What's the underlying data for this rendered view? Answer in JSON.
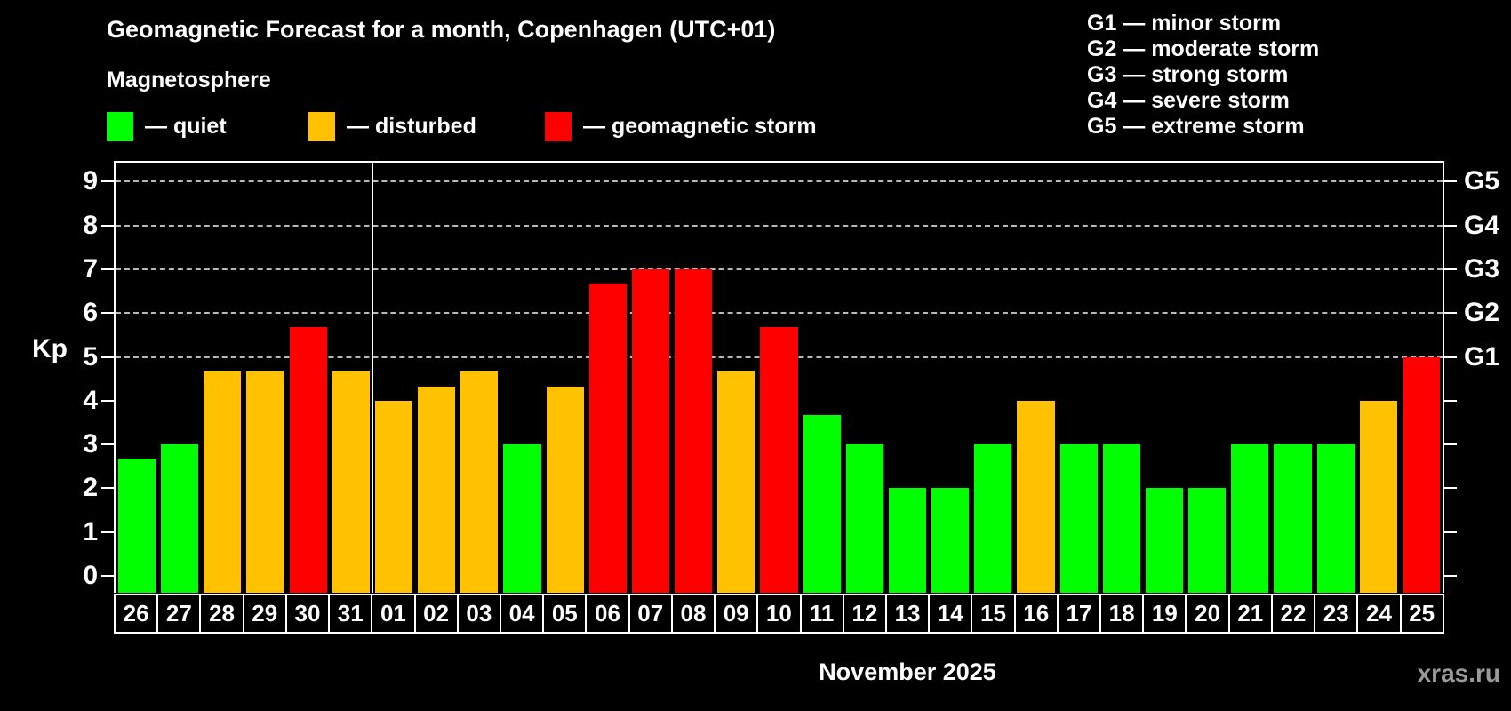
{
  "title": "Geomagnetic Forecast for a month, Copenhagen (UTC+01)",
  "subtitle": "Magnetosphere",
  "legend": {
    "items": [
      {
        "key": "quiet",
        "label": "— quiet"
      },
      {
        "key": "disturbed",
        "label": "— disturbed"
      },
      {
        "key": "storm",
        "label": "— geomagnetic storm"
      }
    ]
  },
  "g_legend": [
    "G1 — minor storm",
    "G2 — moderate storm",
    "G3 — strong storm",
    "G4 — severe storm",
    "G5 — extreme storm"
  ],
  "colors": {
    "quiet": "#00ff00",
    "disturbed": "#ffc100",
    "storm": "#ff0000",
    "background": "#000000",
    "axis": "#ffffff",
    "grid": "#b8b8b8",
    "watermark": "#9a9a9a"
  },
  "axis": {
    "left_label": "Kp",
    "left_ticks": [
      0,
      1,
      2,
      3,
      4,
      5,
      6,
      7,
      8,
      9
    ],
    "right_labels": [
      {
        "value": 5,
        "label": "G1"
      },
      {
        "value": 6,
        "label": "G2"
      },
      {
        "value": 7,
        "label": "G3"
      },
      {
        "value": 8,
        "label": "G4"
      },
      {
        "value": 9,
        "label": "G5"
      }
    ]
  },
  "xlabel": "November 2025",
  "watermark": "xras.ru",
  "chart_data": {
    "type": "bar",
    "title": "Geomagnetic Forecast for a month, Copenhagen (UTC+01)",
    "ylabel": "Kp",
    "xlabel": "November 2025",
    "ylim": [
      0,
      9
    ],
    "grid_values": [
      5,
      6,
      7,
      8,
      9
    ],
    "month_boundary_after_index": 5,
    "categories": [
      "26",
      "27",
      "28",
      "29",
      "30",
      "31",
      "01",
      "02",
      "03",
      "04",
      "05",
      "06",
      "07",
      "08",
      "09",
      "10",
      "11",
      "12",
      "13",
      "14",
      "15",
      "16",
      "17",
      "18",
      "19",
      "20",
      "21",
      "22",
      "23",
      "24",
      "25"
    ],
    "values": [
      2.67,
      3,
      4.67,
      4.67,
      5.67,
      4.67,
      4,
      4.33,
      4.67,
      3,
      4.33,
      6.67,
      7,
      7,
      4.67,
      5.67,
      3.67,
      3,
      2,
      2,
      3,
      4,
      3,
      3,
      2,
      2,
      3,
      3,
      3,
      4,
      5
    ],
    "statuses": [
      "quiet",
      "quiet",
      "disturbed",
      "disturbed",
      "storm",
      "disturbed",
      "disturbed",
      "disturbed",
      "disturbed",
      "quiet",
      "disturbed",
      "storm",
      "storm",
      "storm",
      "disturbed",
      "storm",
      "quiet",
      "quiet",
      "quiet",
      "quiet",
      "quiet",
      "disturbed",
      "quiet",
      "quiet",
      "quiet",
      "quiet",
      "quiet",
      "quiet",
      "quiet",
      "disturbed",
      "storm"
    ]
  }
}
